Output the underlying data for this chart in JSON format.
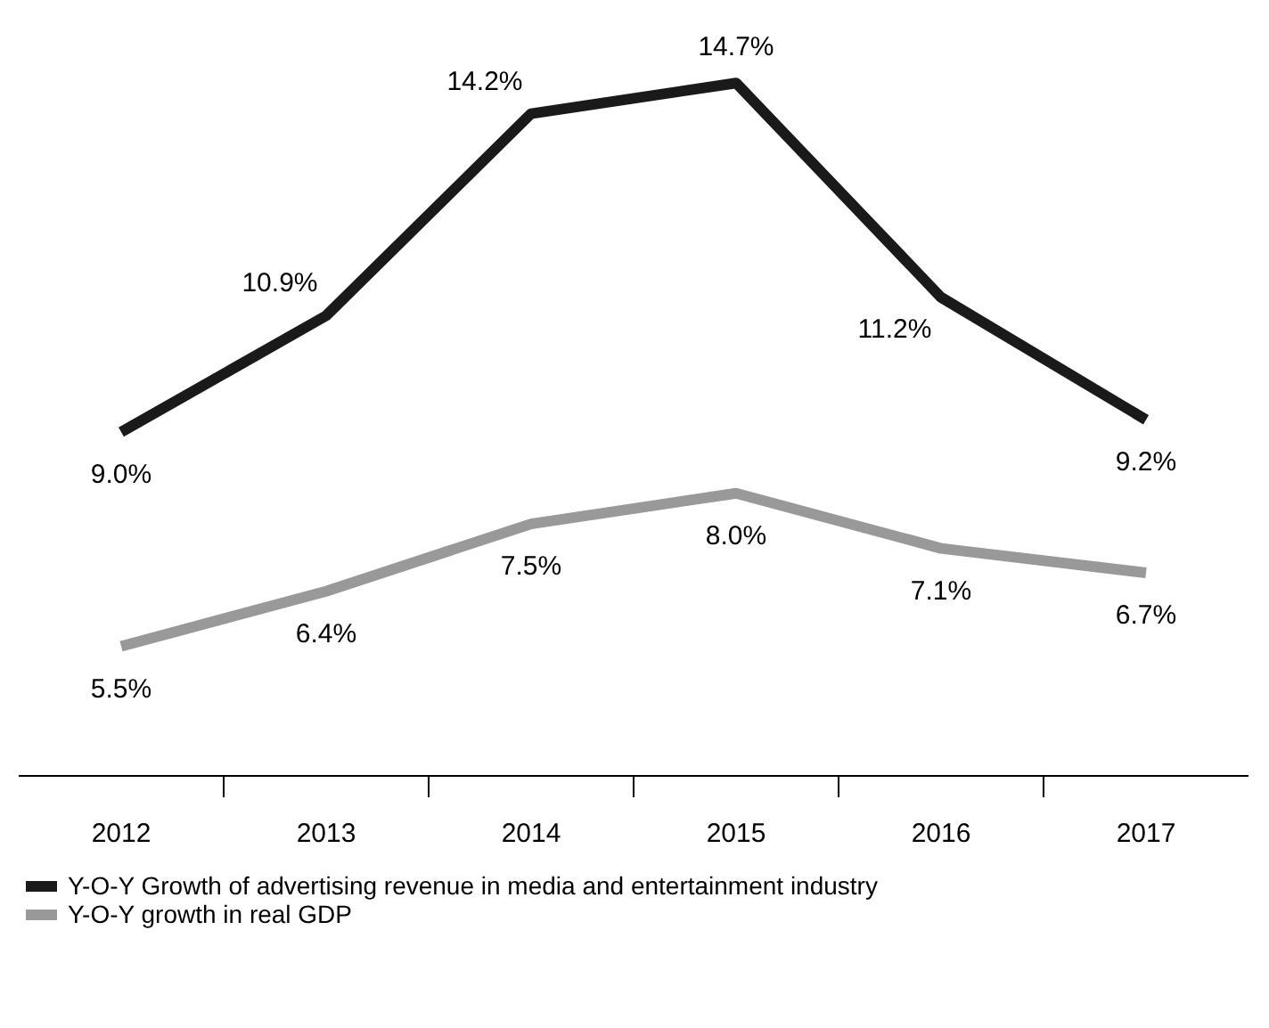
{
  "chart_data": {
    "type": "line",
    "categories": [
      "2012",
      "2013",
      "2014",
      "2015",
      "2016",
      "2017"
    ],
    "series": [
      {
        "name": "Y-O-Y Growth of advertising revenue in media and entertainment industry",
        "color": "#1a1a1a",
        "values": [
          9.0,
          10.9,
          14.2,
          14.7,
          11.2,
          9.2
        ],
        "value_labels": [
          "9.0%",
          "10.9%",
          "14.2%",
          "14.7%",
          "11.2%",
          "9.2%"
        ]
      },
      {
        "name": "Y-O-Y growth in real GDP",
        "color": "#999999",
        "values": [
          5.5,
          6.4,
          7.5,
          8.0,
          7.1,
          6.7
        ],
        "value_labels": [
          "5.5%",
          "6.4%",
          "7.5%",
          "8.0%",
          "7.1%",
          "6.7%"
        ]
      }
    ],
    "grid": false,
    "legend": "bottom left",
    "tick_labels": "x",
    "data_labels": true,
    "marker": "none",
    "line_style": "solid"
  }
}
